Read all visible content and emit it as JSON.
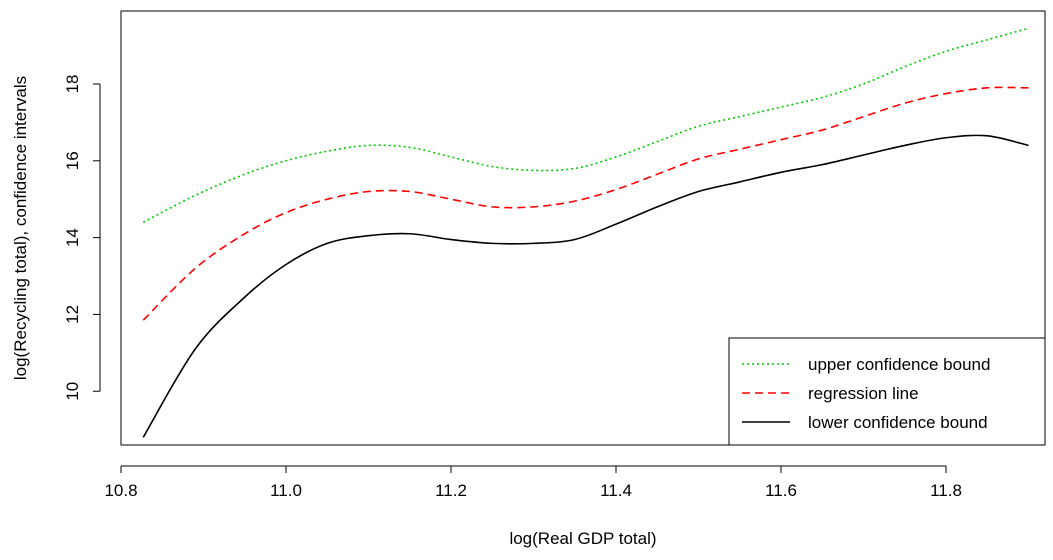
{
  "chart_data": {
    "type": "line",
    "title": "",
    "xlabel": "log(Real GDP total)",
    "ylabel": "log(Recycling total), confidence intervals",
    "xlim": [
      10.8,
      11.92
    ],
    "ylim": [
      8.6,
      19.9
    ],
    "xticks": [
      "10.8",
      "11.0",
      "11.2",
      "11.4",
      "11.6",
      "11.8"
    ],
    "yticks": [
      "10",
      "12",
      "14",
      "16",
      "18"
    ],
    "grid": false,
    "legend_position": "bottom-right",
    "x": [
      10.827,
      10.89,
      10.95,
      11.0,
      11.05,
      11.1,
      11.15,
      11.2,
      11.25,
      11.3,
      11.35,
      11.4,
      11.45,
      11.5,
      11.55,
      11.6,
      11.65,
      11.7,
      11.75,
      11.8,
      11.85,
      11.9
    ],
    "series": [
      {
        "name": "upper confidence bound",
        "color": "#00cc00",
        "style": "dotted",
        "values": [
          14.4,
          15.1,
          15.65,
          16.0,
          16.25,
          16.4,
          16.35,
          16.1,
          15.85,
          15.75,
          15.8,
          16.1,
          16.5,
          16.9,
          17.15,
          17.4,
          17.65,
          18.0,
          18.45,
          18.85,
          19.15,
          19.45
        ]
      },
      {
        "name": "regression line",
        "color": "#ff0000",
        "style": "dashed",
        "values": [
          11.85,
          13.2,
          14.1,
          14.65,
          15.0,
          15.2,
          15.2,
          15.0,
          14.8,
          14.8,
          14.95,
          15.25,
          15.65,
          16.05,
          16.3,
          16.55,
          16.8,
          17.15,
          17.5,
          17.75,
          17.9,
          17.9
        ]
      },
      {
        "name": "lower confidence bound",
        "color": "#000000",
        "style": "solid",
        "values": [
          8.8,
          11.1,
          12.45,
          13.3,
          13.85,
          14.05,
          14.1,
          13.95,
          13.85,
          13.85,
          13.95,
          14.35,
          14.8,
          15.2,
          15.45,
          15.7,
          15.9,
          16.15,
          16.4,
          16.6,
          16.65,
          16.4
        ]
      }
    ]
  }
}
